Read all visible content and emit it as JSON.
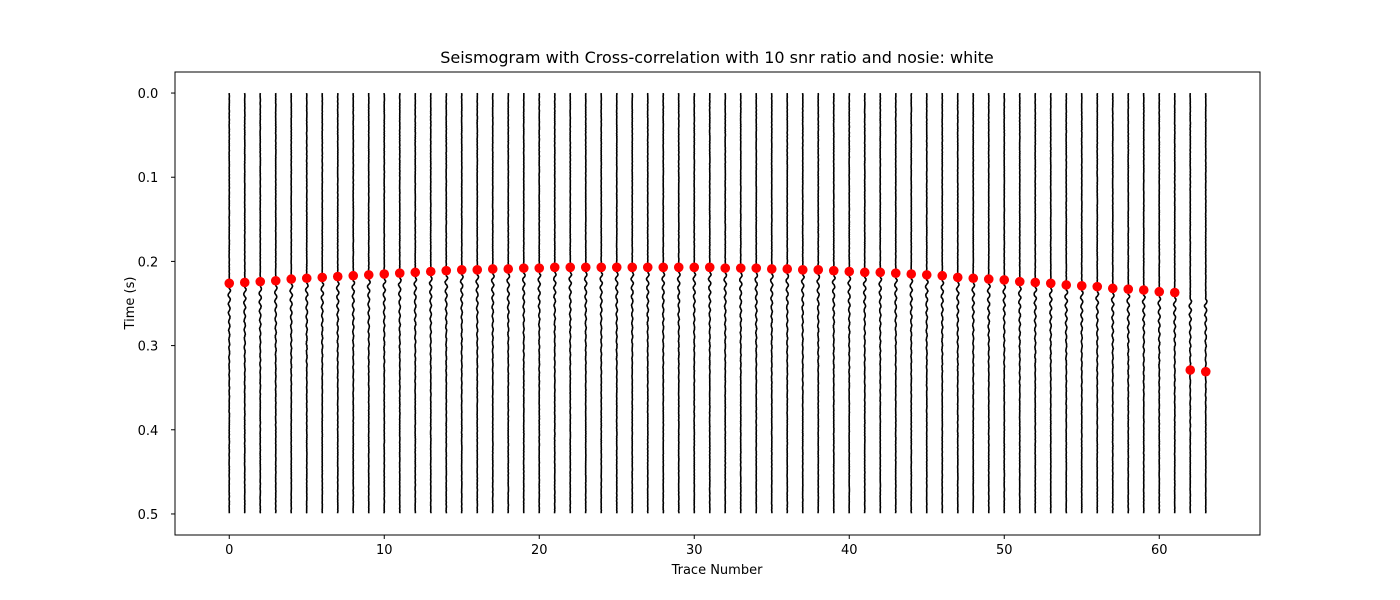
{
  "chart_data": {
    "type": "scatter",
    "title": "Seismogram with Cross-correlation with 10 snr ratio and nosie: white",
    "xlabel": "Trace Number",
    "ylabel": "Time (s)",
    "xlim": [
      -3.5,
      66.5
    ],
    "ylim": [
      0.525,
      -0.025
    ],
    "y_inverted": true,
    "xticks": [
      0,
      10,
      20,
      30,
      40,
      50,
      60
    ],
    "yticks": [
      0.0,
      0.1,
      0.2,
      0.3,
      0.4,
      0.5
    ],
    "ytick_labels": [
      "0.0",
      "0.1",
      "0.2",
      "0.3",
      "0.4",
      "0.5"
    ],
    "grid": false,
    "legend": "none",
    "trace_count": 64,
    "trace_time_range": [
      0.0,
      0.5
    ],
    "trace_color": "#000000",
    "pick_color": "#ff0000",
    "series": [
      {
        "values": [
          0.226,
          0.225,
          0.224,
          0.223,
          0.221,
          0.22,
          0.219,
          0.218,
          0.217,
          0.216,
          0.215,
          0.214,
          0.213,
          0.212,
          0.211,
          0.21,
          0.21,
          0.209,
          0.209,
          0.208,
          0.208,
          0.207,
          0.207,
          0.207,
          0.207,
          0.207,
          0.207,
          0.207,
          0.207,
          0.207,
          0.207,
          0.207,
          0.208,
          0.208,
          0.208,
          0.209,
          0.209,
          0.21,
          0.21,
          0.211,
          0.212,
          0.213,
          0.213,
          0.214,
          0.215,
          0.216,
          0.217,
          0.219,
          0.22,
          0.221,
          0.222,
          0.224,
          0.225,
          0.226,
          0.228,
          0.229,
          0.23,
          0.232,
          0.233,
          0.234,
          0.236,
          0.237,
          0.329,
          0.331
        ]
      }
    ]
  }
}
